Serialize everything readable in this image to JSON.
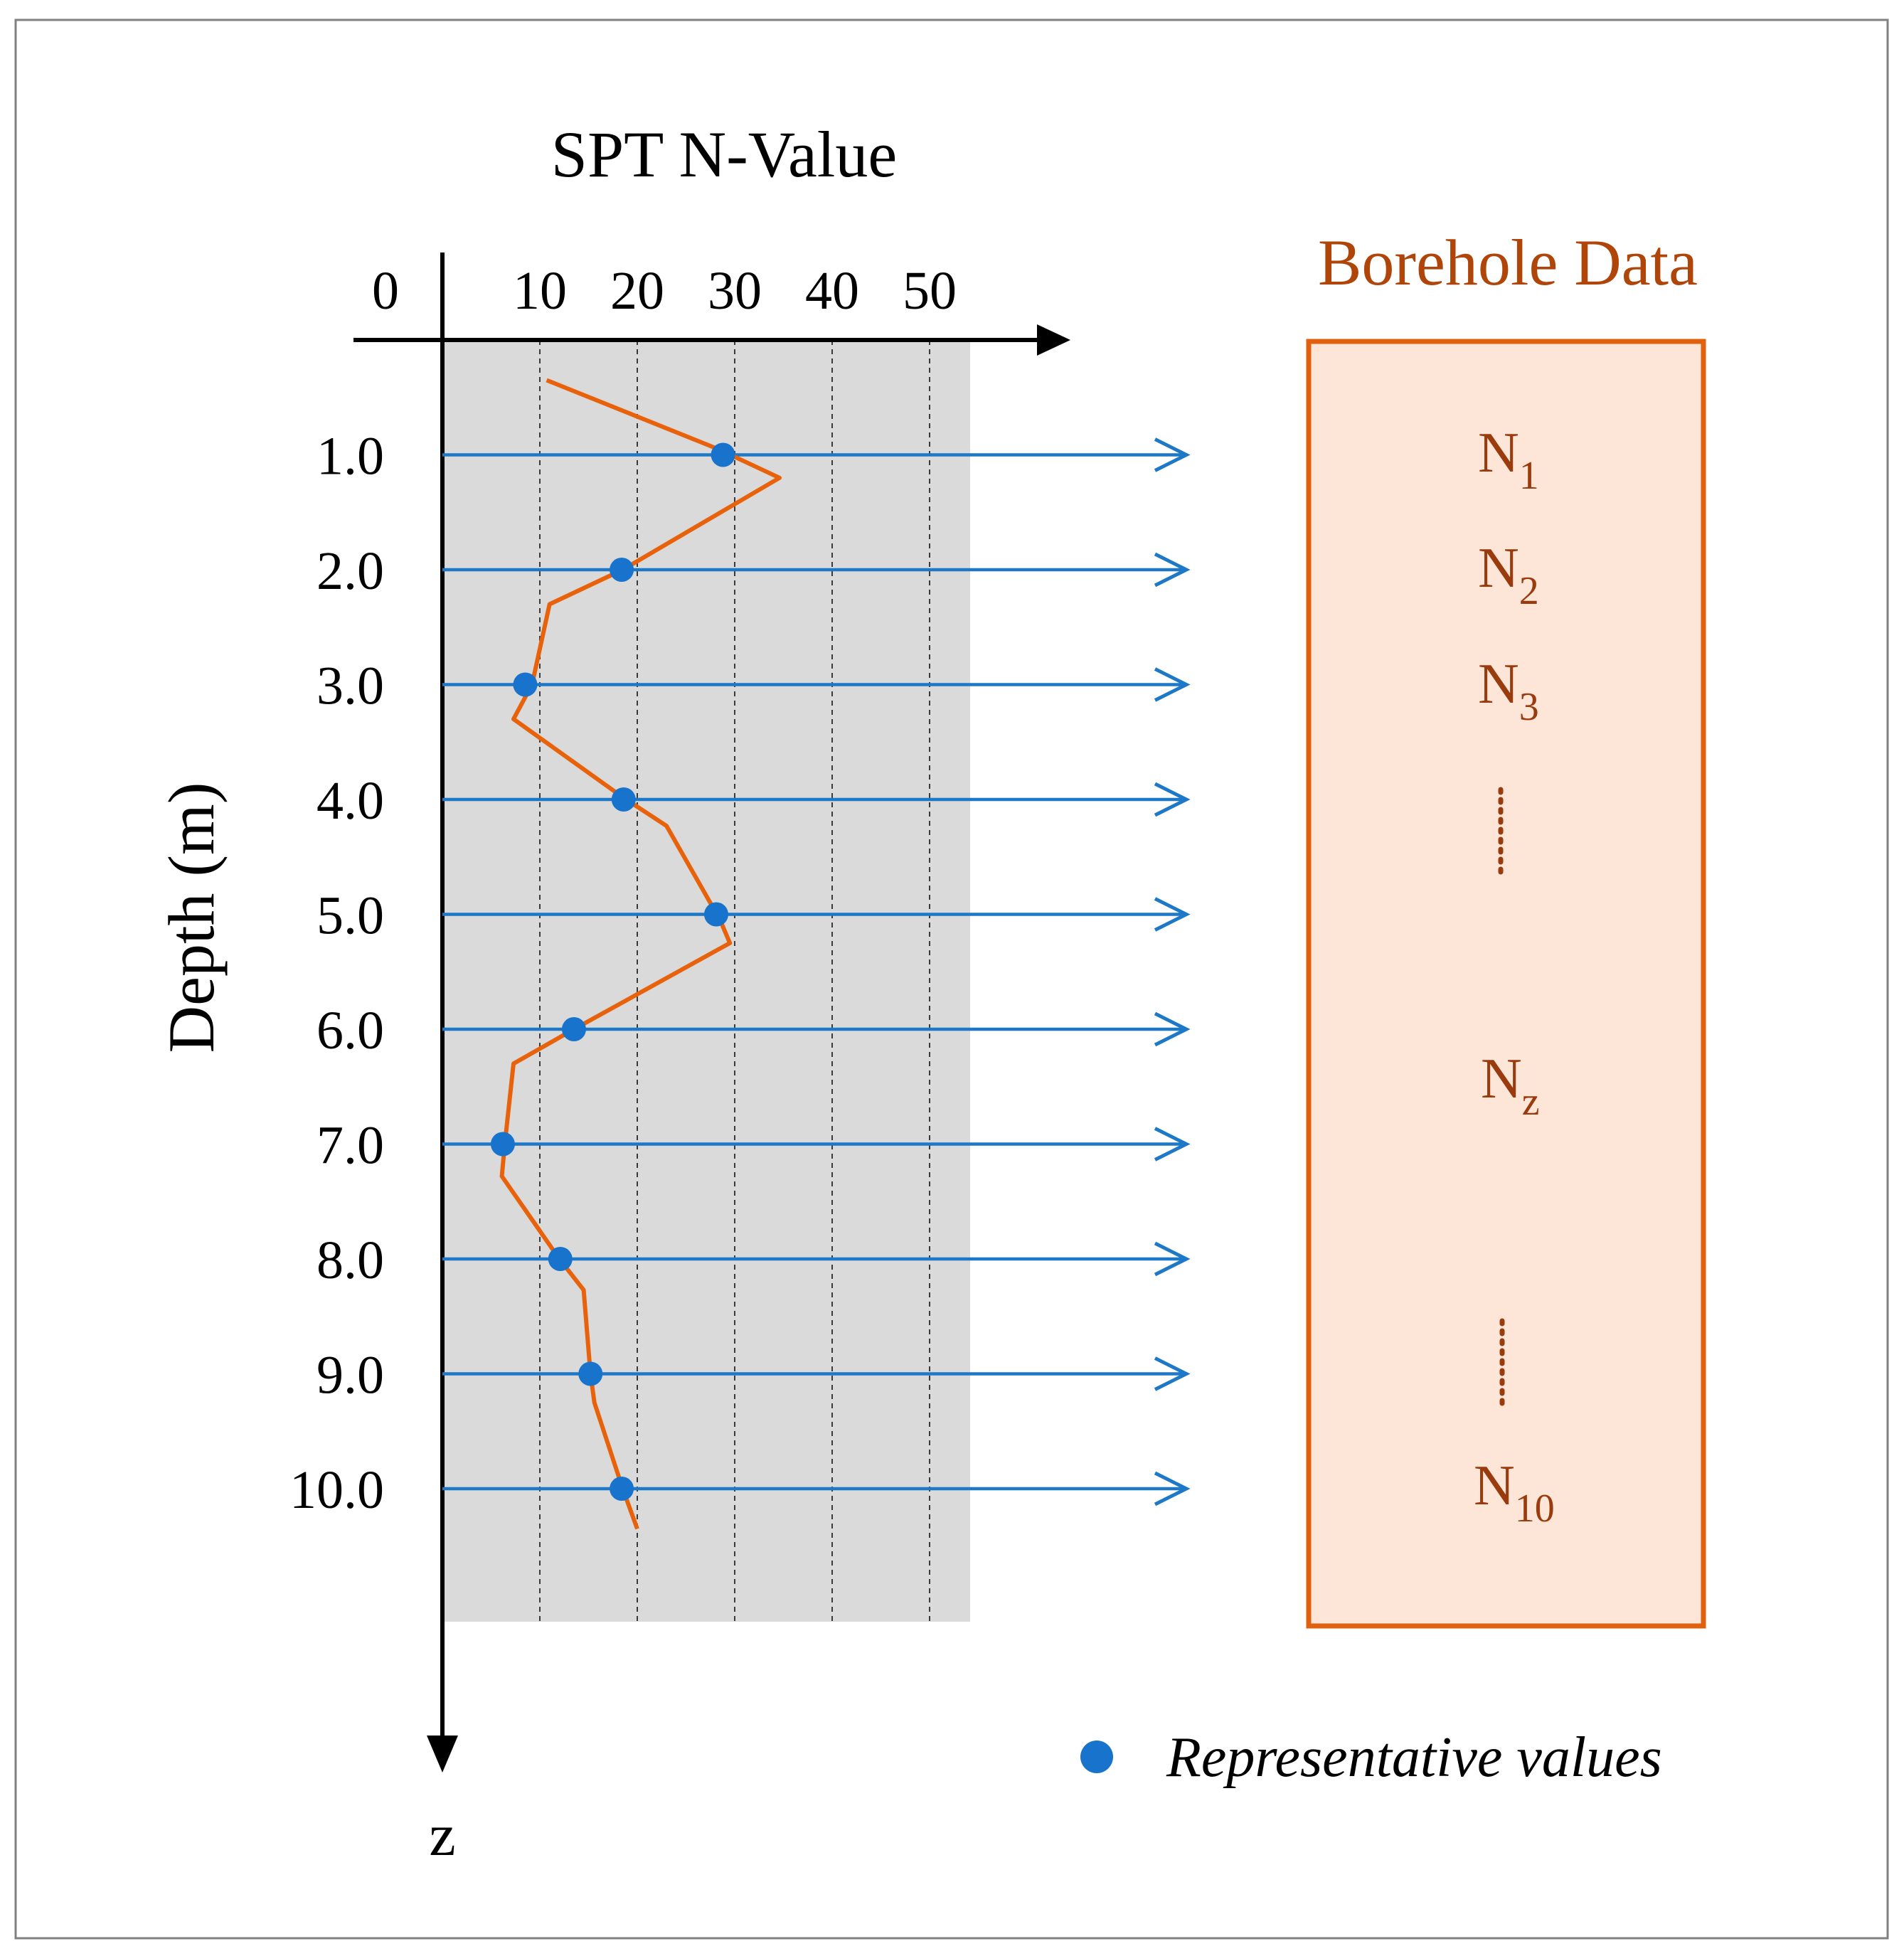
{
  "chart_data": {
    "type": "line",
    "title": "SPT N-Value",
    "xlabel": "SPT N-Value",
    "ylabel": "Depth (m)",
    "depth_axis_symbol": "z",
    "x_ticks": [
      0,
      10,
      20,
      30,
      40,
      50
    ],
    "x_tick_labels": [
      "0",
      "10",
      "20",
      "30",
      "40",
      "50"
    ],
    "y_ticks": [
      1,
      2,
      3,
      4,
      5,
      6,
      7,
      8,
      9,
      10
    ],
    "y_tick_labels": [
      "1.0",
      "2.0",
      "3.0",
      "4.0",
      "5.0",
      "6.0",
      "7.0",
      "8.0",
      "9.0",
      "10.0"
    ],
    "xlim": [
      0,
      55
    ],
    "ylim": [
      0,
      11.2
    ],
    "grid": true,
    "profile": {
      "name": "SPT N-Value profile",
      "color": "#E8620C",
      "points": [
        {
          "n": 10.7,
          "depth": 0.35
        },
        {
          "n": 28.3,
          "depth": 0.95
        },
        {
          "n": 34.6,
          "depth": 1.2
        },
        {
          "n": 18.5,
          "depth": 2.0
        },
        {
          "n": 11.0,
          "depth": 2.3
        },
        {
          "n": 9.2,
          "depth": 3.0
        },
        {
          "n": 7.3,
          "depth": 3.3
        },
        {
          "n": 18.5,
          "depth": 3.98
        },
        {
          "n": 23.0,
          "depth": 4.23
        },
        {
          "n": 28.5,
          "depth": 5.05
        },
        {
          "n": 29.5,
          "depth": 5.25
        },
        {
          "n": 13.5,
          "depth": 6.0
        },
        {
          "n": 7.3,
          "depth": 6.3
        },
        {
          "n": 6.4,
          "depth": 7.0
        },
        {
          "n": 6.1,
          "depth": 7.28
        },
        {
          "n": 12.0,
          "depth": 8.0
        },
        {
          "n": 14.5,
          "depth": 8.27
        },
        {
          "n": 15.2,
          "depth": 9.0
        },
        {
          "n": 15.6,
          "depth": 9.25
        },
        {
          "n": 18.5,
          "depth": 10.0
        },
        {
          "n": 20.0,
          "depth": 10.35
        }
      ]
    },
    "representative_values": [
      {
        "depth": 1.0,
        "n": 28.8
      },
      {
        "depth": 2.0,
        "n": 18.4
      },
      {
        "depth": 3.0,
        "n": 8.5
      },
      {
        "depth": 4.0,
        "n": 18.6
      },
      {
        "depth": 5.0,
        "n": 28.1
      },
      {
        "depth": 6.0,
        "n": 13.5
      },
      {
        "depth": 7.0,
        "n": 6.2
      },
      {
        "depth": 8.0,
        "n": 12.1
      },
      {
        "depth": 9.0,
        "n": 15.2
      },
      {
        "depth": 10.0,
        "n": 18.4
      }
    ],
    "legend": {
      "label": "Representative values",
      "placement": "bottom-right"
    }
  },
  "borehole": {
    "title": "Borehole Data",
    "entries": [
      {
        "base": "N",
        "sub": "1"
      },
      {
        "base": "N",
        "sub": "2"
      },
      {
        "base": "N",
        "sub": "3"
      },
      {
        "base": "N",
        "sub": "z"
      },
      {
        "base": "N",
        "sub": "10"
      }
    ]
  },
  "colors": {
    "profile": "#E8620C",
    "markers": "#1873CC",
    "arrows": "#1E78C8",
    "borehole_title": "#B0450A",
    "borehole_border": "#E0600E",
    "borehole_fill": "#FDE5D8",
    "borehole_text": "#9A3B0E",
    "plot_background": "#DADADA"
  }
}
